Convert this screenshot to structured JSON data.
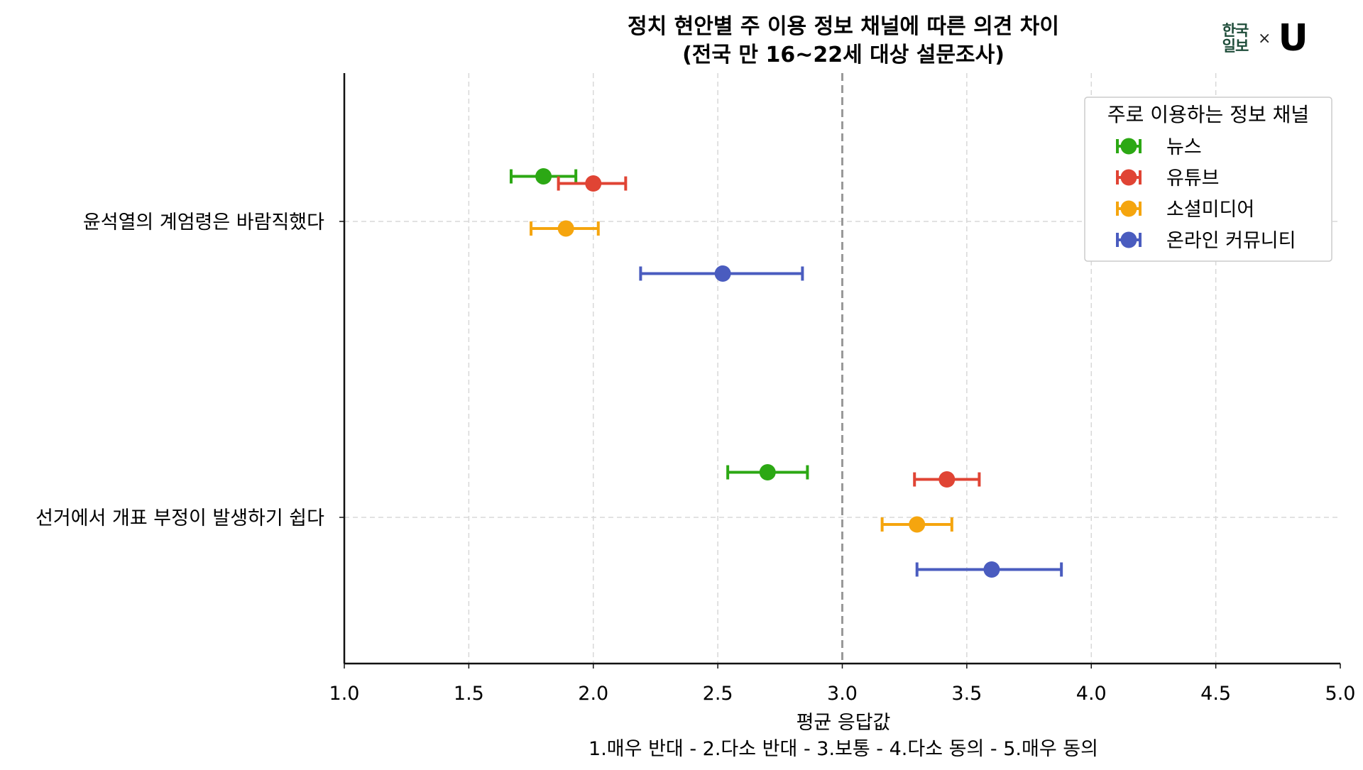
{
  "logo": {
    "korean": "한국일보",
    "separator": "×",
    "mark": "U"
  },
  "colors": {
    "뉴스": "#2ca814",
    "유튜브": "#e04434",
    "소셜미디어": "#f5a50e",
    "온라인 커뮤니티": "#4a5cbf",
    "refline": "#999999",
    "axis": "#111111",
    "grid": "#d8d8d8"
  },
  "chart_data": {
    "type": "scatter",
    "title": "정치 현안별 주 이용 정보 채널에 따른 의견 차이",
    "subtitle": "(전국 만 16~22세 대상 설문조사)",
    "xlabel": "평균 응답값",
    "xlabel_note": "1.매우 반대 - 2.다소 반대 - 3.보통 - 4.다소 동의 - 5.매우 동의",
    "xlim": [
      1.0,
      5.0
    ],
    "xticks": [
      "1.0",
      "1.5",
      "2.0",
      "2.5",
      "3.0",
      "3.5",
      "4.0",
      "4.5",
      "5.0"
    ],
    "reference_line_x": 3.0,
    "grid": true,
    "legend": {
      "title": "주로 이용하는 정보 채널",
      "placement": "top-right"
    },
    "categories": [
      "윤석열의 계엄령은 바람직했다",
      "선거에서 개표 부정이 발생하기 쉽다"
    ],
    "series": [
      {
        "name": "뉴스",
        "values": [
          1.8,
          2.7
        ],
        "err_low": [
          1.67,
          2.54
        ],
        "err_high": [
          1.93,
          2.86
        ]
      },
      {
        "name": "유튜브",
        "values": [
          2.0,
          3.42
        ],
        "err_low": [
          1.86,
          3.29
        ],
        "err_high": [
          2.13,
          3.55
        ]
      },
      {
        "name": "소셜미디어",
        "values": [
          1.89,
          3.3
        ],
        "err_low": [
          1.75,
          3.16
        ],
        "err_high": [
          2.02,
          3.44
        ]
      },
      {
        "name": "온라인 커뮤니티",
        "values": [
          2.52,
          3.6
        ],
        "err_low": [
          2.19,
          3.3
        ],
        "err_high": [
          2.84,
          3.88
        ]
      }
    ]
  }
}
